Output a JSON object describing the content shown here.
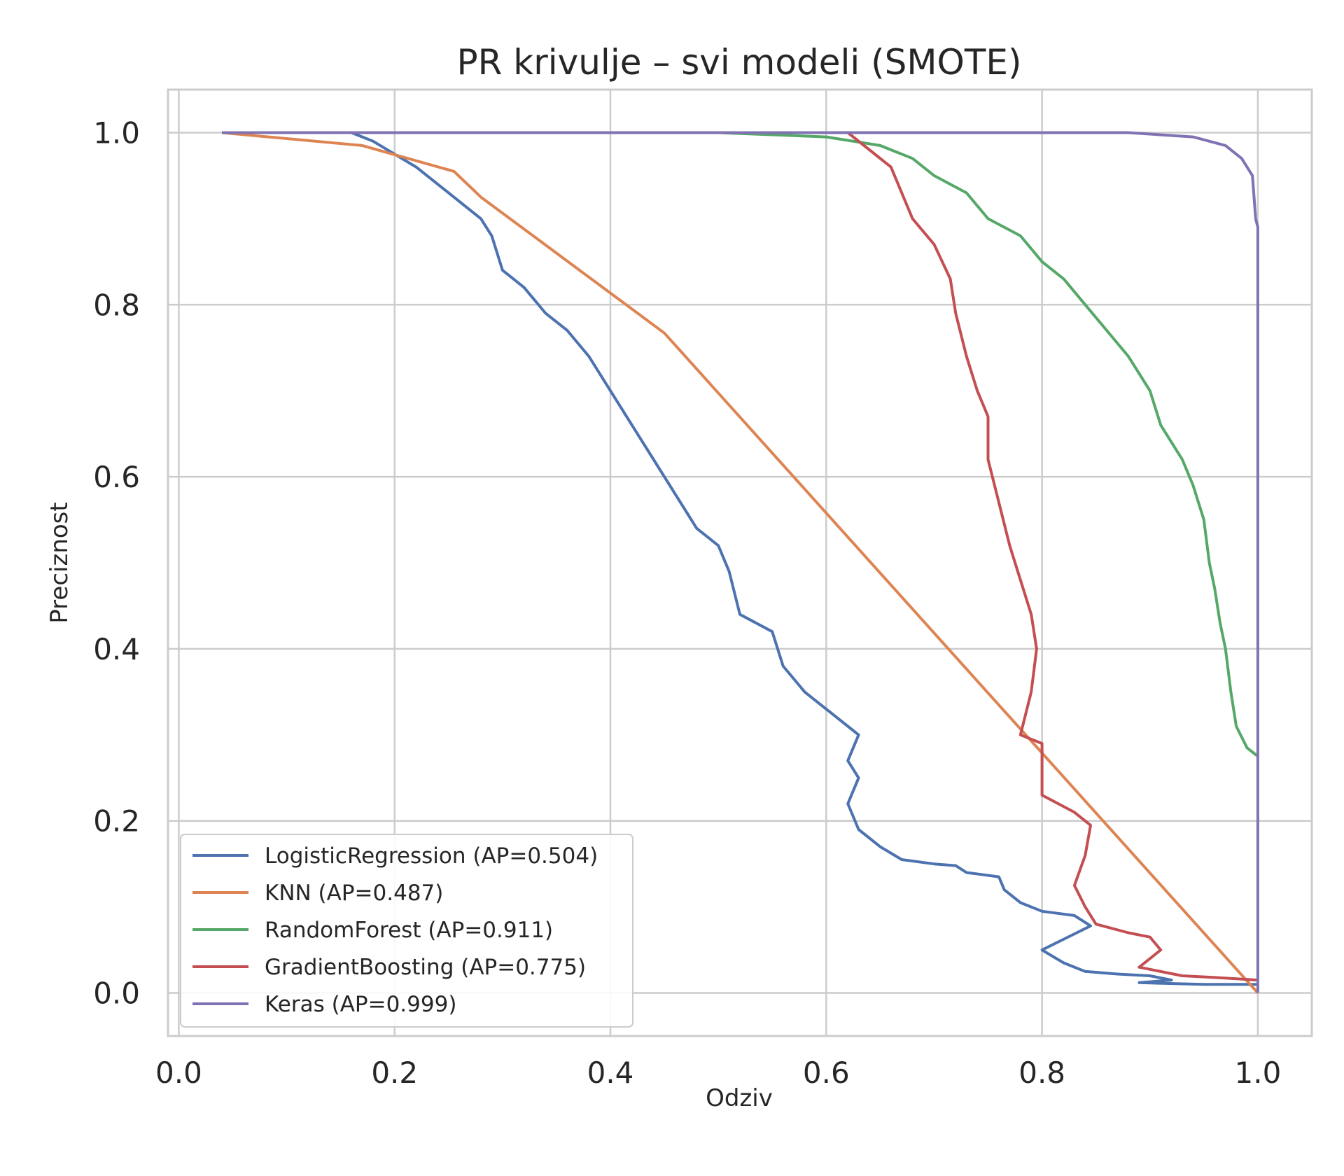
{
  "chart_data": {
    "type": "line",
    "title": "PR krivulje – svi modeli (SMOTE)",
    "xlabel": "Odziv",
    "ylabel": "Preciznost",
    "xlim": [
      -0.01,
      1.05
    ],
    "ylim": [
      -0.05,
      1.05
    ],
    "xticks": [
      0.0,
      0.2,
      0.4,
      0.6,
      0.8,
      1.0
    ],
    "xtick_labels": [
      "0.0",
      "0.2",
      "0.4",
      "0.6",
      "0.8",
      "1.0"
    ],
    "yticks": [
      0.0,
      0.2,
      0.4,
      0.6,
      0.8,
      1.0
    ],
    "ytick_labels": [
      "0.0",
      "0.2",
      "0.4",
      "0.6",
      "0.8",
      "1.0"
    ],
    "grid": true,
    "legend_position": "lower-left",
    "series": [
      {
        "name": "LogisticRegression (AP=0.504)",
        "color": "#4c72b0",
        "points": [
          [
            0.04,
            1.0
          ],
          [
            0.16,
            1.0
          ],
          [
            0.18,
            0.99
          ],
          [
            0.2,
            0.975
          ],
          [
            0.22,
            0.96
          ],
          [
            0.24,
            0.94
          ],
          [
            0.26,
            0.92
          ],
          [
            0.28,
            0.9
          ],
          [
            0.29,
            0.88
          ],
          [
            0.3,
            0.84
          ],
          [
            0.32,
            0.82
          ],
          [
            0.34,
            0.79
          ],
          [
            0.36,
            0.77
          ],
          [
            0.38,
            0.74
          ],
          [
            0.4,
            0.7
          ],
          [
            0.42,
            0.66
          ],
          [
            0.44,
            0.62
          ],
          [
            0.46,
            0.58
          ],
          [
            0.48,
            0.54
          ],
          [
            0.5,
            0.52
          ],
          [
            0.51,
            0.49
          ],
          [
            0.52,
            0.44
          ],
          [
            0.55,
            0.42
          ],
          [
            0.56,
            0.38
          ],
          [
            0.58,
            0.35
          ],
          [
            0.6,
            0.33
          ],
          [
            0.62,
            0.31
          ],
          [
            0.63,
            0.3
          ],
          [
            0.62,
            0.27
          ],
          [
            0.63,
            0.25
          ],
          [
            0.62,
            0.22
          ],
          [
            0.63,
            0.19
          ],
          [
            0.65,
            0.17
          ],
          [
            0.67,
            0.155
          ],
          [
            0.7,
            0.15
          ],
          [
            0.72,
            0.148
          ],
          [
            0.73,
            0.14
          ],
          [
            0.76,
            0.135
          ],
          [
            0.765,
            0.12
          ],
          [
            0.78,
            0.105
          ],
          [
            0.8,
            0.095
          ],
          [
            0.83,
            0.09
          ],
          [
            0.845,
            0.078
          ],
          [
            0.8,
            0.05
          ],
          [
            0.82,
            0.035
          ],
          [
            0.84,
            0.025
          ],
          [
            0.87,
            0.022
          ],
          [
            0.9,
            0.02
          ],
          [
            0.92,
            0.015
          ],
          [
            0.89,
            0.012
          ],
          [
            0.95,
            0.01
          ],
          [
            1.0,
            0.01
          ]
        ]
      },
      {
        "name": "KNN (AP=0.487)",
        "color": "#dd8452",
        "points": [
          [
            0.04,
            1.0
          ],
          [
            0.17,
            0.985
          ],
          [
            0.255,
            0.955
          ],
          [
            0.28,
            0.925
          ],
          [
            0.45,
            0.767
          ],
          [
            1.0,
            0.0
          ]
        ]
      },
      {
        "name": "RandomForest (AP=0.911)",
        "color": "#55a868",
        "points": [
          [
            0.04,
            1.0
          ],
          [
            0.5,
            1.0
          ],
          [
            0.6,
            0.995
          ],
          [
            0.65,
            0.985
          ],
          [
            0.68,
            0.97
          ],
          [
            0.7,
            0.95
          ],
          [
            0.73,
            0.93
          ],
          [
            0.75,
            0.9
          ],
          [
            0.78,
            0.88
          ],
          [
            0.8,
            0.85
          ],
          [
            0.82,
            0.83
          ],
          [
            0.84,
            0.8
          ],
          [
            0.86,
            0.77
          ],
          [
            0.88,
            0.74
          ],
          [
            0.9,
            0.7
          ],
          [
            0.91,
            0.66
          ],
          [
            0.93,
            0.62
          ],
          [
            0.94,
            0.59
          ],
          [
            0.95,
            0.55
          ],
          [
            0.955,
            0.5
          ],
          [
            0.96,
            0.47
          ],
          [
            0.965,
            0.43
          ],
          [
            0.97,
            0.4
          ],
          [
            0.975,
            0.35
          ],
          [
            0.98,
            0.31
          ],
          [
            0.99,
            0.285
          ],
          [
            1.0,
            0.275
          ]
        ]
      },
      {
        "name": "GradientBoosting (AP=0.775)",
        "color": "#c44e52",
        "points": [
          [
            0.04,
            1.0
          ],
          [
            0.62,
            1.0
          ],
          [
            0.64,
            0.98
          ],
          [
            0.66,
            0.96
          ],
          [
            0.67,
            0.93
          ],
          [
            0.68,
            0.9
          ],
          [
            0.7,
            0.87
          ],
          [
            0.715,
            0.83
          ],
          [
            0.72,
            0.79
          ],
          [
            0.73,
            0.74
          ],
          [
            0.74,
            0.7
          ],
          [
            0.75,
            0.67
          ],
          [
            0.75,
            0.62
          ],
          [
            0.76,
            0.57
          ],
          [
            0.77,
            0.52
          ],
          [
            0.78,
            0.48
          ],
          [
            0.79,
            0.44
          ],
          [
            0.795,
            0.4
          ],
          [
            0.79,
            0.35
          ],
          [
            0.78,
            0.3
          ],
          [
            0.8,
            0.29
          ],
          [
            0.8,
            0.23
          ],
          [
            0.83,
            0.21
          ],
          [
            0.845,
            0.195
          ],
          [
            0.84,
            0.16
          ],
          [
            0.83,
            0.125
          ],
          [
            0.84,
            0.1
          ],
          [
            0.85,
            0.08
          ],
          [
            0.88,
            0.07
          ],
          [
            0.9,
            0.065
          ],
          [
            0.91,
            0.05
          ],
          [
            0.89,
            0.03
          ],
          [
            0.93,
            0.02
          ],
          [
            0.96,
            0.018
          ],
          [
            1.0,
            0.015
          ]
        ]
      },
      {
        "name": "Keras (AP=0.999)",
        "color": "#8172b3",
        "points": [
          [
            0.04,
            1.0
          ],
          [
            0.88,
            1.0
          ],
          [
            0.94,
            0.995
          ],
          [
            0.97,
            0.985
          ],
          [
            0.985,
            0.97
          ],
          [
            0.995,
            0.95
          ],
          [
            0.998,
            0.9
          ],
          [
            1.0,
            0.89
          ],
          [
            1.0,
            0.0
          ]
        ]
      }
    ]
  }
}
